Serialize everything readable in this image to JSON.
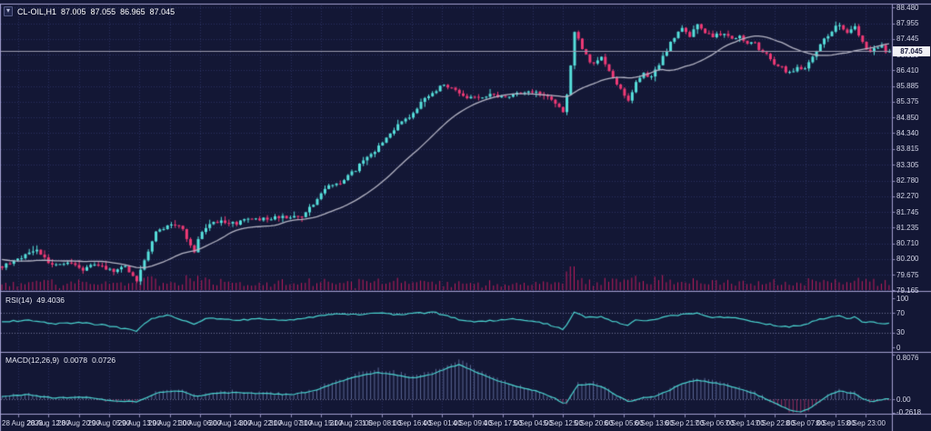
{
  "chart_data": {
    "type": "candlestick",
    "title": {
      "symbol_timeframe": "CL-OIL,H1",
      "open": "87.005",
      "high": "87.055",
      "low": "86.965",
      "close": "87.045"
    },
    "price_axis": {
      "labels": [
        "88.480",
        "87.955",
        "87.445",
        "86.920",
        "86.410",
        "85.885",
        "85.375",
        "84.850",
        "84.340",
        "83.815",
        "83.305",
        "82.780",
        "82.270",
        "81.745",
        "81.235",
        "80.710",
        "80.200",
        "79.675",
        "79.165"
      ],
      "current": "87.045"
    },
    "time_axis": {
      "labels": [
        "28 Aug 2023",
        "28 Aug 12:00",
        "28 Aug 20:00",
        "29 Aug 05:00",
        "29 Aug 13:00",
        "29 Aug 21:00",
        "30 Aug 06:00",
        "30 Aug 14:00",
        "30 Aug 22:00",
        "31 Aug 07:00",
        "31 Aug 15:00",
        "31 Aug 23:00",
        "1 Sep 08:00",
        "1 Sep 16:00",
        "4 Sep 01:00",
        "4 Sep 09:00",
        "4 Sep 17:00",
        "5 Sep 04:00",
        "5 Sep 12:00",
        "5 Sep 20:00",
        "6 Sep 05:00",
        "6 Sep 13:00",
        "6 Sep 21:00",
        "7 Sep 06:00",
        "7 Sep 14:00",
        "7 Sep 22:00",
        "8 Sep 07:00",
        "8 Sep 15:00",
        "8 Sep 23:00"
      ]
    },
    "candles_count": 232,
    "ylim": [
      79.165,
      88.48
    ],
    "grid": "dotted",
    "moving_average": {
      "type": "SMA",
      "window": 24
    },
    "price_path_anchors": [
      [
        0,
        79.95
      ],
      [
        18,
        80.15
      ],
      [
        40,
        80.5
      ],
      [
        58,
        79.95
      ],
      [
        72,
        80.1
      ],
      [
        90,
        79.85
      ],
      [
        105,
        80.0
      ],
      [
        122,
        79.8
      ],
      [
        138,
        79.95
      ],
      [
        150,
        79.45
      ],
      [
        160,
        80.3
      ],
      [
        172,
        81.1
      ],
      [
        185,
        81.35
      ],
      [
        200,
        81.2
      ],
      [
        213,
        80.45
      ],
      [
        222,
        81.15
      ],
      [
        238,
        81.45
      ],
      [
        258,
        81.35
      ],
      [
        275,
        81.55
      ],
      [
        295,
        81.5
      ],
      [
        312,
        81.6
      ],
      [
        328,
        81.55
      ],
      [
        342,
        81.9
      ],
      [
        358,
        82.55
      ],
      [
        372,
        82.7
      ],
      [
        388,
        83.05
      ],
      [
        402,
        83.5
      ],
      [
        418,
        83.95
      ],
      [
        432,
        84.45
      ],
      [
        448,
        84.85
      ],
      [
        462,
        85.3
      ],
      [
        478,
        85.75
      ],
      [
        490,
        85.95
      ],
      [
        502,
        85.7
      ],
      [
        515,
        85.5
      ],
      [
        528,
        85.55
      ],
      [
        542,
        85.6
      ],
      [
        556,
        85.5
      ],
      [
        568,
        85.65
      ],
      [
        580,
        85.75
      ],
      [
        592,
        85.65
      ],
      [
        602,
        85.5
      ],
      [
        612,
        85.3
      ],
      [
        620,
        84.95
      ],
      [
        626,
        86.2
      ],
      [
        632,
        87.85
      ],
      [
        638,
        87.25
      ],
      [
        646,
        86.8
      ],
      [
        654,
        86.55
      ],
      [
        660,
        86.9
      ],
      [
        668,
        86.45
      ],
      [
        676,
        86.1
      ],
      [
        684,
        85.7
      ],
      [
        690,
        85.4
      ],
      [
        698,
        85.95
      ],
      [
        706,
        86.35
      ],
      [
        714,
        86.15
      ],
      [
        722,
        86.45
      ],
      [
        730,
        86.95
      ],
      [
        740,
        87.45
      ],
      [
        750,
        87.75
      ],
      [
        758,
        87.55
      ],
      [
        766,
        87.9
      ],
      [
        774,
        87.7
      ],
      [
        784,
        87.5
      ],
      [
        794,
        87.65
      ],
      [
        804,
        87.45
      ],
      [
        812,
        87.55
      ],
      [
        820,
        87.25
      ],
      [
        828,
        87.45
      ],
      [
        836,
        87.05
      ],
      [
        844,
        86.9
      ],
      [
        852,
        86.6
      ],
      [
        860,
        86.5
      ],
      [
        868,
        86.3
      ],
      [
        876,
        86.55
      ],
      [
        884,
        86.4
      ],
      [
        892,
        86.75
      ],
      [
        900,
        87.15
      ],
      [
        908,
        87.5
      ],
      [
        916,
        87.75
      ],
      [
        924,
        87.95
      ],
      [
        932,
        87.6
      ],
      [
        940,
        87.85
      ],
      [
        948,
        87.3
      ],
      [
        955,
        86.95
      ],
      [
        962,
        87.15
      ],
      [
        969,
        87.25
      ],
      [
        975,
        87.0
      ],
      [
        980,
        87.045
      ]
    ],
    "indicators": {
      "rsi": {
        "label": "RSI(14)",
        "value": "49.4036",
        "axis_labels": [
          "100",
          "70",
          "30",
          "0"
        ],
        "level_lines": [
          70,
          30
        ],
        "path_anchors": [
          [
            0,
            52
          ],
          [
            30,
            55
          ],
          [
            60,
            48
          ],
          [
            90,
            50
          ],
          [
            120,
            44
          ],
          [
            150,
            33
          ],
          [
            165,
            58
          ],
          [
            185,
            66
          ],
          [
            213,
            48
          ],
          [
            230,
            60
          ],
          [
            260,
            55
          ],
          [
            290,
            58
          ],
          [
            320,
            55
          ],
          [
            345,
            62
          ],
          [
            370,
            68
          ],
          [
            400,
            67
          ],
          [
            420,
            70
          ],
          [
            435,
            66
          ],
          [
            455,
            69
          ],
          [
            478,
            71
          ],
          [
            495,
            62
          ],
          [
            515,
            52
          ],
          [
            545,
            55
          ],
          [
            570,
            58
          ],
          [
            592,
            52
          ],
          [
            612,
            42
          ],
          [
            620,
            35
          ],
          [
            632,
            72
          ],
          [
            645,
            60
          ],
          [
            660,
            63
          ],
          [
            676,
            52
          ],
          [
            690,
            44
          ],
          [
            700,
            56
          ],
          [
            714,
            54
          ],
          [
            730,
            62
          ],
          [
            750,
            67
          ],
          [
            766,
            70
          ],
          [
            784,
            60
          ],
          [
            800,
            62
          ],
          [
            820,
            56
          ],
          [
            836,
            50
          ],
          [
            852,
            45
          ],
          [
            868,
            42
          ],
          [
            884,
            46
          ],
          [
            900,
            56
          ],
          [
            916,
            62
          ],
          [
            924,
            66
          ],
          [
            932,
            58
          ],
          [
            940,
            62
          ],
          [
            950,
            50
          ],
          [
            960,
            52
          ],
          [
            970,
            48
          ],
          [
            980,
            49.4
          ]
        ]
      },
      "macd": {
        "label": "MACD(12,26,9)",
        "value_macd": "0.0078",
        "value_signal": "0.0726",
        "axis_labels": [
          "0.8076",
          "0.00",
          "-0.2618"
        ],
        "line_anchors": [
          [
            0,
            0.05
          ],
          [
            30,
            0.08
          ],
          [
            60,
            0.02
          ],
          [
            90,
            0.04
          ],
          [
            120,
            -0.02
          ],
          [
            150,
            -0.05
          ],
          [
            175,
            0.12
          ],
          [
            200,
            0.15
          ],
          [
            215,
            0.05
          ],
          [
            235,
            0.1
          ],
          [
            260,
            0.12
          ],
          [
            290,
            0.1
          ],
          [
            320,
            0.08
          ],
          [
            345,
            0.15
          ],
          [
            370,
            0.3
          ],
          [
            395,
            0.42
          ],
          [
            415,
            0.48
          ],
          [
            435,
            0.44
          ],
          [
            455,
            0.38
          ],
          [
            475,
            0.45
          ],
          [
            495,
            0.58
          ],
          [
            505,
            0.62
          ],
          [
            515,
            0.55
          ],
          [
            530,
            0.45
          ],
          [
            550,
            0.32
          ],
          [
            570,
            0.22
          ],
          [
            590,
            0.15
          ],
          [
            610,
            0.02
          ],
          [
            622,
            -0.1
          ],
          [
            635,
            0.25
          ],
          [
            650,
            0.28
          ],
          [
            665,
            0.2
          ],
          [
            680,
            0.05
          ],
          [
            692,
            -0.05
          ],
          [
            705,
            0.02
          ],
          [
            720,
            0.05
          ],
          [
            735,
            0.15
          ],
          [
            750,
            0.28
          ],
          [
            766,
            0.35
          ],
          [
            784,
            0.3
          ],
          [
            800,
            0.25
          ],
          [
            815,
            0.18
          ],
          [
            830,
            0.1
          ],
          [
            845,
            -0.02
          ],
          [
            858,
            -0.12
          ],
          [
            870,
            -0.2
          ],
          [
            880,
            -0.23
          ],
          [
            890,
            -0.18
          ],
          [
            900,
            -0.05
          ],
          [
            912,
            0.08
          ],
          [
            924,
            0.15
          ],
          [
            932,
            0.12
          ],
          [
            940,
            0.1
          ],
          [
            950,
            0.0
          ],
          [
            958,
            -0.05
          ],
          [
            966,
            -0.02
          ],
          [
            975,
            0.005
          ],
          [
            980,
            0.0078
          ]
        ]
      }
    },
    "colors": {
      "background": "#131735",
      "grid": "#2b3160",
      "bull": "#56e0dc",
      "bear": "#f03a76",
      "ma_line": "#b5b5c5",
      "indicator_line": "#4ad2cf",
      "volume": "#c11d5e",
      "hist_pos": "#5b6694",
      "hist_neg": "#94305f",
      "separator": "#a39fd0",
      "level_line": "#70739a",
      "axis_text": "#d4d6e8",
      "current_price_line": "#9a9aae",
      "price_box_bg": "#f2f2f7",
      "price_box_text": "#16193a"
    }
  }
}
